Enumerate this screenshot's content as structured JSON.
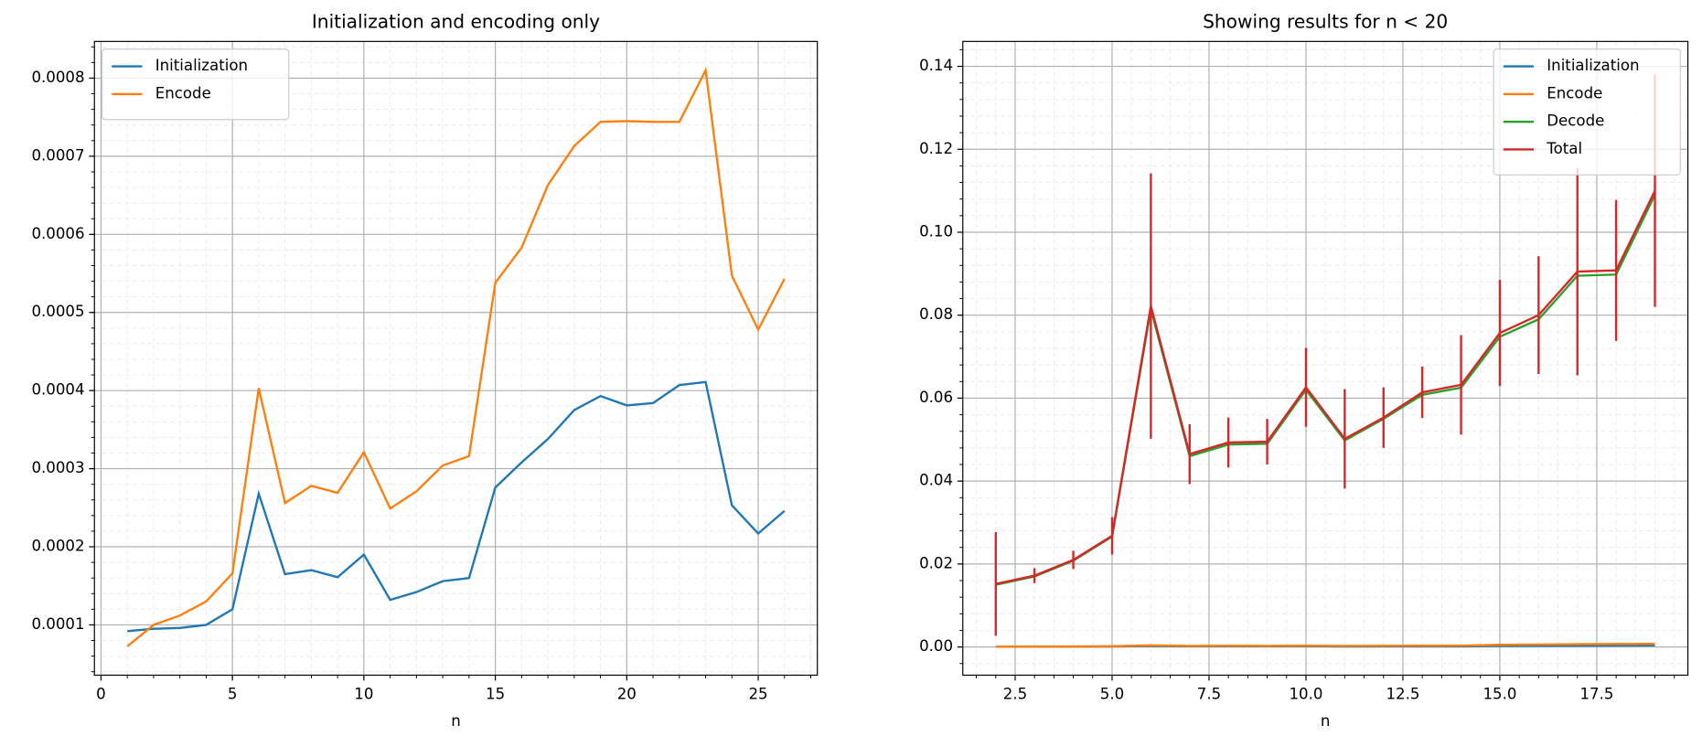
{
  "chart_data": [
    {
      "type": "line",
      "title": "Initialization and encoding only",
      "xlabel": "n",
      "x": [
        1,
        2,
        3,
        4,
        5,
        6,
        7,
        8,
        9,
        10,
        11,
        12,
        13,
        14,
        15,
        16,
        17,
        18,
        19,
        20,
        21,
        22,
        23,
        24,
        25,
        26
      ],
      "series": [
        {
          "name": "Initialization",
          "color": "#1f77b4",
          "values": [
            9.2e-05,
            9.5e-05,
            9.6e-05,
            0.0001,
            0.00012,
            0.000268,
            0.000165,
            0.00017,
            0.000161,
            0.00019,
            0.000132,
            0.000142,
            0.000156,
            0.00016,
            0.000276,
            0.000308,
            0.000338,
            0.000375,
            0.000393,
            0.000381,
            0.000384,
            0.000407,
            0.000411,
            0.000253,
            0.000217,
            0.000246
          ]
        },
        {
          "name": "Encode",
          "color": "#ff7f0e",
          "values": [
            7.25e-05,
            0.0001,
            0.000112,
            0.00013,
            0.000166,
            0.000403,
            0.000256,
            0.000278,
            0.000269,
            0.000321,
            0.000249,
            0.000271,
            0.000304,
            0.000316,
            0.000538,
            0.000583,
            0.000663,
            0.000713,
            0.000744,
            0.000745,
            0.000744,
            0.000744,
            0.00081,
            0.000547,
            0.000478,
            0.000543
          ]
        }
      ],
      "xlim": [
        -0.25,
        27.25
      ],
      "xticks": [
        0,
        5,
        10,
        15,
        20,
        25
      ],
      "ylim": [
        3.56e-05,
        0.000847
      ],
      "yticks": [
        0.0001,
        0.0002,
        0.0003,
        0.0004,
        0.0005,
        0.0006,
        0.0007,
        0.0008
      ],
      "grid": true,
      "minor_grid": true,
      "legend": "upper left"
    },
    {
      "type": "line",
      "title": "Showing results for n < 20",
      "xlabel": "n",
      "x": [
        2,
        3,
        4,
        5,
        6,
        7,
        8,
        9,
        10,
        11,
        12,
        13,
        14,
        15,
        16,
        17,
        18,
        19
      ],
      "series": [
        {
          "name": "Initialization",
          "color": "#1f77b4",
          "values": [
            9.5e-05,
            9.6e-05,
            0.0001,
            0.00012,
            0.000268,
            0.000165,
            0.00017,
            0.000161,
            0.00019,
            0.000132,
            0.000142,
            0.000156,
            0.00016,
            0.000276,
            0.000308,
            0.000338,
            0.000375,
            0.000393
          ]
        },
        {
          "name": "Encode",
          "color": "#ff7f0e",
          "values": [
            0.0001,
            0.000112,
            0.00013,
            0.000166,
            0.000403,
            0.000256,
            0.000278,
            0.000269,
            0.000321,
            0.000249,
            0.000271,
            0.000304,
            0.000316,
            0.000538,
            0.000583,
            0.000663,
            0.000713,
            0.000744
          ]
        },
        {
          "name": "Decode",
          "color": "#2ca02c",
          "values": [
            0.015,
            0.017,
            0.0208,
            0.0266,
            0.0815,
            0.046,
            0.0488,
            0.049,
            0.062,
            0.0498,
            0.055,
            0.0608,
            0.0625,
            0.0748,
            0.079,
            0.0895,
            0.0898,
            0.109
          ]
        },
        {
          "name": "Total",
          "color": "#d62728",
          "values": [
            0.0152,
            0.0172,
            0.021,
            0.0268,
            0.0822,
            0.0465,
            0.0493,
            0.0495,
            0.0626,
            0.0502,
            0.0553,
            0.0614,
            0.0632,
            0.0757,
            0.08,
            0.0905,
            0.0908,
            0.11
          ],
          "errors": [
            0.0125,
            0.0018,
            0.0022,
            0.0045,
            0.032,
            0.0072,
            0.006,
            0.0055,
            0.0095,
            0.012,
            0.0073,
            0.0062,
            0.012,
            0.0128,
            0.0142,
            0.025,
            0.017,
            0.028
          ]
        }
      ],
      "xlim": [
        1.15,
        19.85
      ],
      "xticks": [
        2.5,
        {
          "value": 5,
          "label": "5.0"
        },
        7.5,
        {
          "value": 10,
          "label": "10.0"
        },
        12.5,
        {
          "value": 15,
          "label": "15.0"
        },
        17.5
      ],
      "ylim": [
        -0.0068,
        0.146
      ],
      "yticks": [
        {
          "value": 0,
          "label": "0.00"
        },
        {
          "value": 0.02,
          "label": "0.02"
        },
        {
          "value": 0.04,
          "label": "0.04"
        },
        {
          "value": 0.06,
          "label": "0.06"
        },
        {
          "value": 0.08,
          "label": "0.08"
        },
        {
          "value": 0.1,
          "label": "0.10"
        },
        {
          "value": 0.12,
          "label": "0.12"
        },
        {
          "value": 0.14,
          "label": "0.14"
        }
      ],
      "grid": true,
      "minor_grid": true,
      "legend": "upper right"
    }
  ]
}
